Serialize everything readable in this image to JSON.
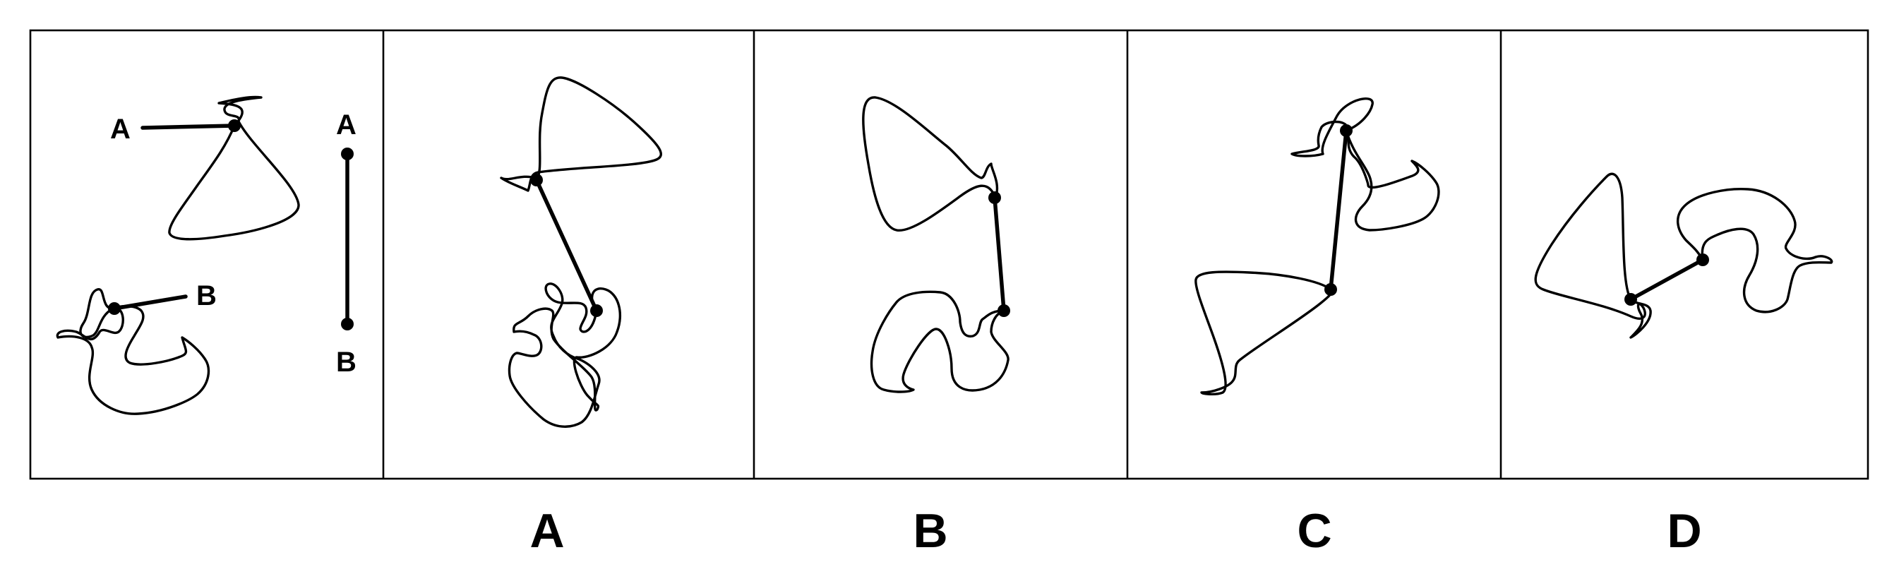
{
  "question": {
    "labels": {
      "a": "A",
      "b": "B"
    },
    "reference": {
      "label_a": "A",
      "label_b": "B"
    }
  },
  "options": [
    {
      "id": "option-a",
      "label": "A"
    },
    {
      "id": "option-b",
      "label": "B"
    },
    {
      "id": "option-c",
      "label": "C"
    },
    {
      "id": "option-d",
      "label": "D"
    }
  ]
}
